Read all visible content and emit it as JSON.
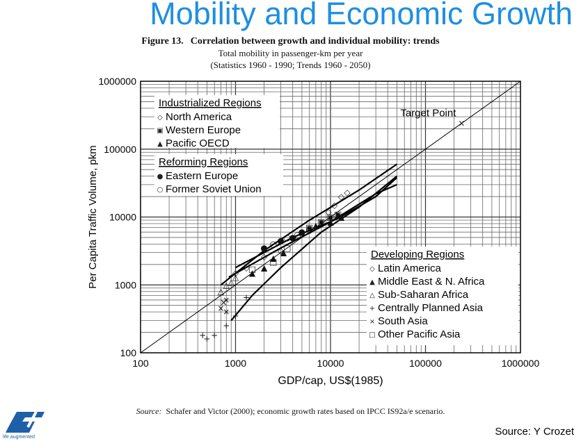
{
  "slide": {
    "title": "Mobility and Economic Growth",
    "credit": "Source: Y Crozet",
    "logo_tagline": "life.augmented"
  },
  "figure": {
    "number": "Figure 13.",
    "title": "Correlation between growth and individual mobility:  trends",
    "subtitle": "Total mobility in passenger-km per year",
    "note": "(Statistics 1960 - 1990;  Trends 1960 - 2050)",
    "source_label": "Source:",
    "source_text": "Schafer and Victor (2000);  economic growth rates based on IPCC IS92a/e scenario."
  },
  "chart_data": {
    "type": "scatter",
    "xscale": "log",
    "yscale": "log",
    "xlabel": "GDP/cap, US$(1985)",
    "ylabel": "Per Capita Traffic Volume, pkm",
    "xlim": [
      100,
      1000000
    ],
    "ylim": [
      100,
      1000000
    ],
    "xticks": [
      "100",
      "1000",
      "10000",
      "100000",
      "1000000"
    ],
    "yticks": [
      "100",
      "1000",
      "10000",
      "100000",
      "1000000"
    ],
    "grid": true,
    "annotation": {
      "text": "Target Point",
      "x": 240000,
      "y": 240000
    },
    "reference_line": {
      "from": [
        100,
        100
      ],
      "to": [
        1000000,
        1000000
      ]
    },
    "legend_groups": [
      {
        "title": "Industrialized Regions",
        "position": "top-left",
        "entries": [
          {
            "label": "North America",
            "marker": "◇"
          },
          {
            "label": "Western Europe",
            "marker": "▣"
          },
          {
            "label": "Pacific OECD",
            "marker": "▲"
          }
        ]
      },
      {
        "title": "Reforming Regions",
        "position": "top-left",
        "entries": [
          {
            "label": "Eastern Europe",
            "marker": "●"
          },
          {
            "label": "Former Soviet Union",
            "marker": "○"
          }
        ]
      },
      {
        "title": "Developing Regions",
        "position": "bottom-right",
        "entries": [
          {
            "label": "Latin America",
            "marker": "◇"
          },
          {
            "label": "Middle East & N. Africa",
            "marker": "▲"
          },
          {
            "label": "Sub-Saharan Africa",
            "marker": "△"
          },
          {
            "label": "Centrally Planned Asia",
            "marker": "+"
          },
          {
            "label": "South Asia",
            "marker": "×"
          },
          {
            "label": "Other Pacific Asia",
            "marker": "□"
          }
        ]
      }
    ],
    "trend_lines": [
      {
        "name": "upper trend",
        "points": [
          [
            700,
            1000
          ],
          [
            2000,
            3200
          ],
          [
            6000,
            9000
          ],
          [
            20000,
            25000
          ],
          [
            50000,
            60000
          ]
        ]
      },
      {
        "name": "middle trend",
        "points": [
          [
            850,
            1300
          ],
          [
            3000,
            3500
          ],
          [
            10000,
            8500
          ],
          [
            30000,
            22000
          ],
          [
            50000,
            30000
          ]
        ]
      },
      {
        "name": "lower trend",
        "points": [
          [
            1000,
            1800
          ],
          [
            4000,
            5000
          ],
          [
            12000,
            9500
          ],
          [
            30000,
            20000
          ],
          [
            50000,
            38000
          ]
        ]
      },
      {
        "name": "asia trend",
        "points": [
          [
            900,
            300
          ],
          [
            1500,
            700
          ],
          [
            3000,
            1800
          ],
          [
            8000,
            6000
          ],
          [
            20000,
            14000
          ],
          [
            50000,
            40000
          ]
        ]
      }
    ],
    "series": [
      {
        "name": "North America",
        "marker": "◇",
        "points": [
          [
            9500,
            12000
          ],
          [
            11000,
            15000
          ],
          [
            13000,
            20000
          ],
          [
            15000,
            23000
          ]
        ]
      },
      {
        "name": "Western Europe",
        "marker": "▣",
        "points": [
          [
            6000,
            7000
          ],
          [
            8000,
            8500
          ],
          [
            10000,
            10000
          ],
          [
            12000,
            11000
          ]
        ]
      },
      {
        "name": "Pacific OECD",
        "marker": "▲",
        "points": [
          [
            5000,
            6000
          ],
          [
            7000,
            7500
          ],
          [
            10000,
            8500
          ],
          [
            13000,
            10000
          ]
        ]
      },
      {
        "name": "Eastern Europe",
        "marker": "●",
        "points": [
          [
            2000,
            3500
          ],
          [
            3000,
            4500
          ],
          [
            4000,
            5000
          ],
          [
            5000,
            6000
          ]
        ]
      },
      {
        "name": "Former Soviet Union",
        "marker": "○",
        "points": [
          [
            2500,
            4000
          ],
          [
            3500,
            5000
          ],
          [
            4500,
            5500
          ],
          [
            6000,
            6500
          ]
        ]
      },
      {
        "name": "Latin America",
        "marker": "◇",
        "points": [
          [
            1000,
            1500
          ],
          [
            1300,
            1800
          ],
          [
            2000,
            2600
          ],
          [
            3000,
            3200
          ]
        ]
      },
      {
        "name": "Middle East & N. Africa",
        "marker": "▲",
        "points": [
          [
            1500,
            1500
          ],
          [
            2000,
            1800
          ],
          [
            2500,
            2500
          ],
          [
            3200,
            3000
          ]
        ]
      },
      {
        "name": "Sub-Saharan Africa",
        "marker": "△",
        "points": [
          [
            700,
            800
          ],
          [
            800,
            1000
          ],
          [
            900,
            1100
          ],
          [
            1000,
            1300
          ]
        ]
      },
      {
        "name": "Centrally Planned Asia",
        "marker": "+",
        "points": [
          [
            450,
            180
          ],
          [
            500,
            160
          ],
          [
            600,
            180
          ],
          [
            800,
            250
          ],
          [
            1000,
            350
          ],
          [
            1300,
            650
          ]
        ]
      },
      {
        "name": "South Asia",
        "marker": "×",
        "points": [
          [
            700,
            450
          ],
          [
            750,
            550
          ],
          [
            800,
            600
          ],
          [
            800,
            400
          ],
          [
            240000,
            240000
          ]
        ]
      },
      {
        "name": "Other Pacific Asia",
        "marker": "□",
        "points": [
          [
            1500,
            1700
          ],
          [
            2500,
            2200
          ],
          [
            3500,
            3500
          ]
        ]
      }
    ]
  }
}
